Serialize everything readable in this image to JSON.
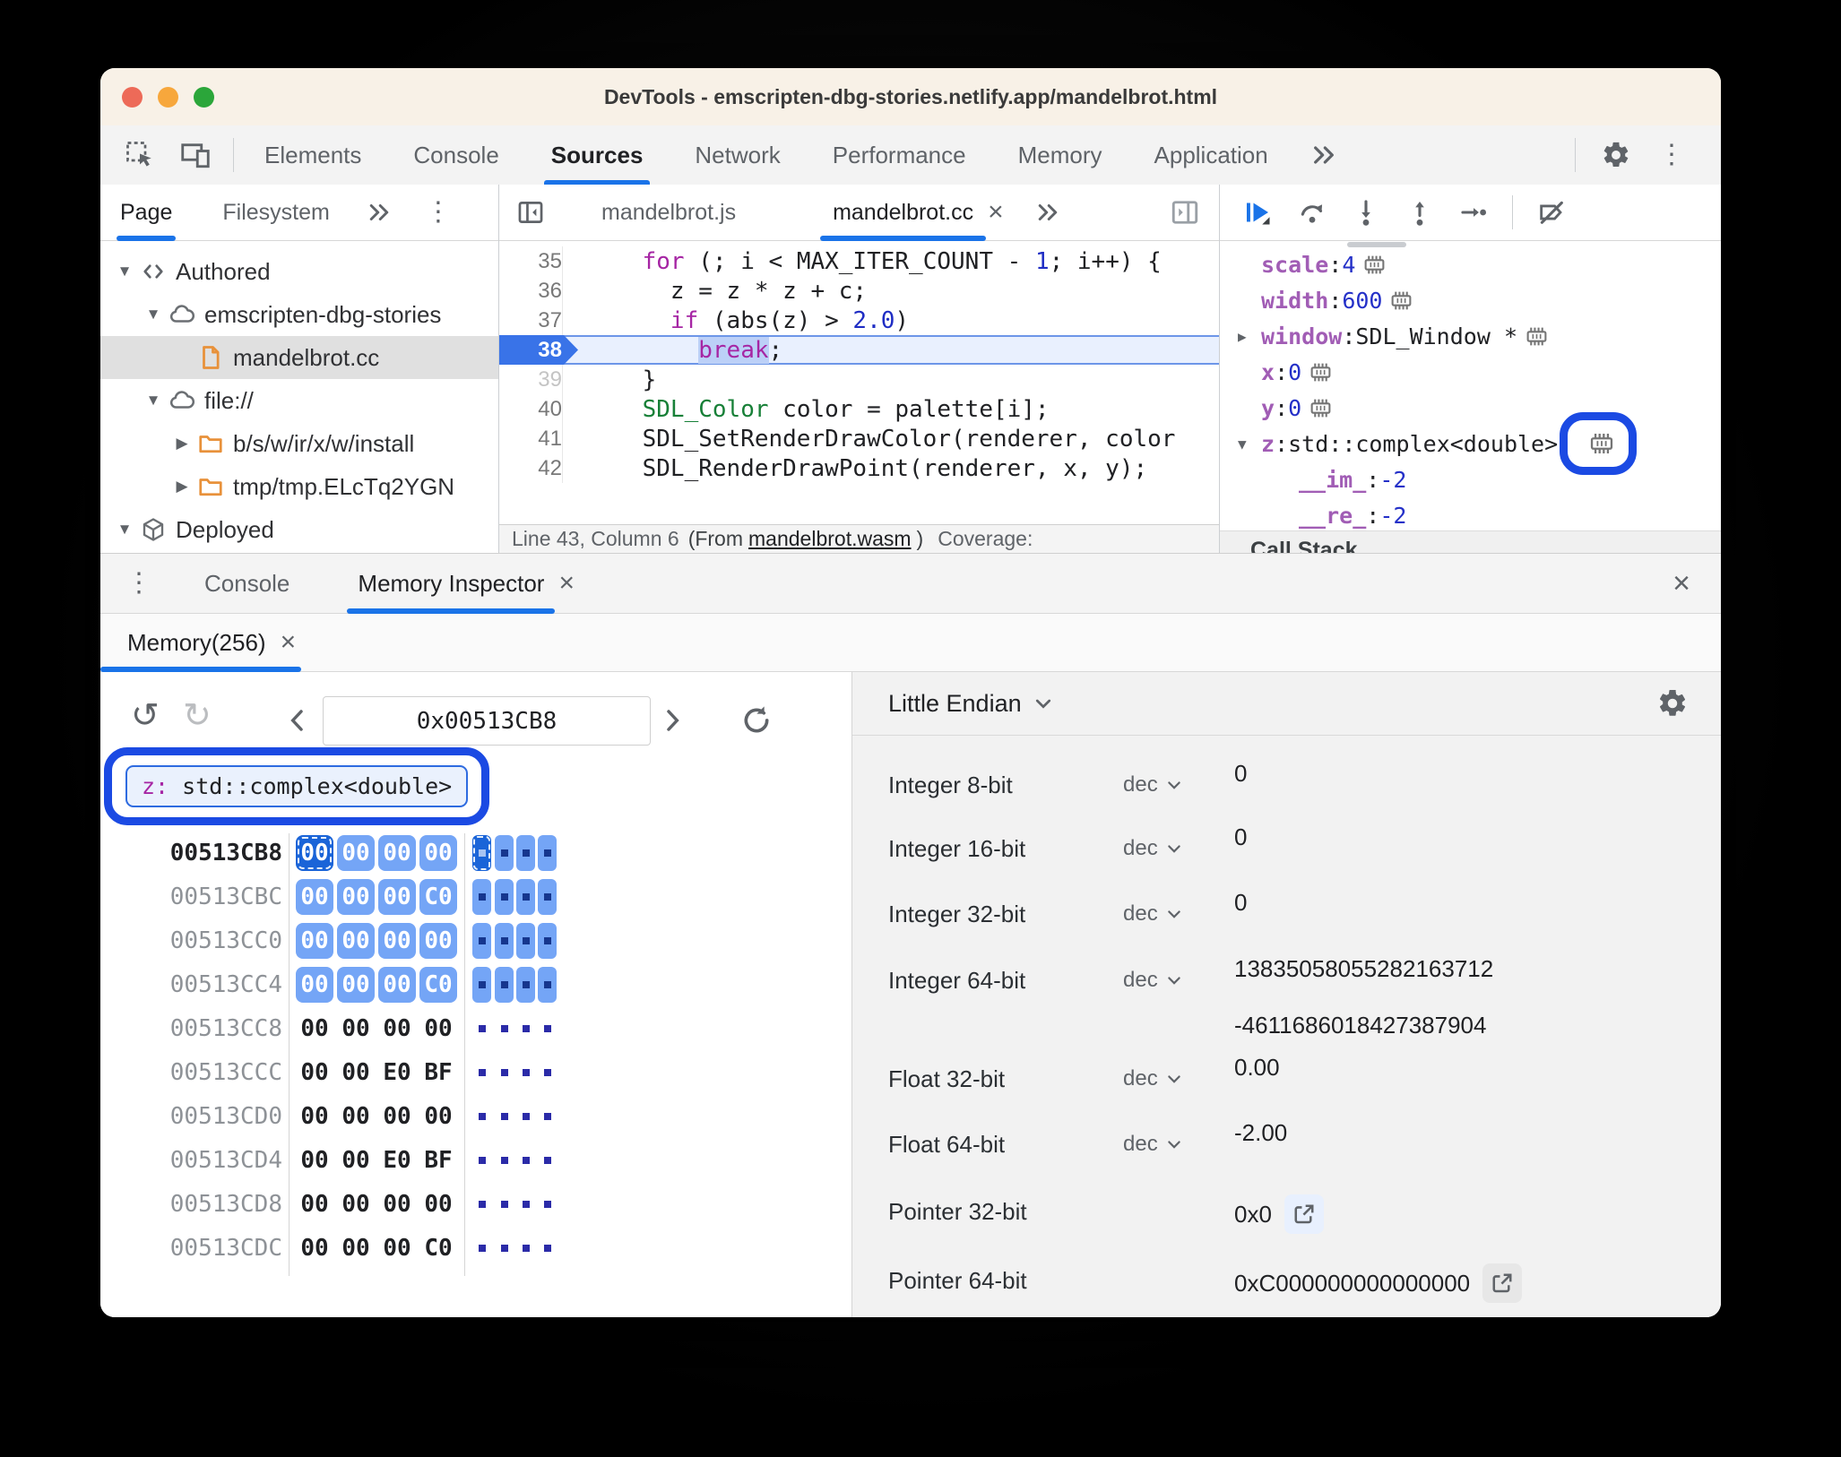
{
  "window": {
    "title": "DevTools - emscripten-dbg-stories.netlify.app/mandelbrot.html"
  },
  "colors": {
    "accent": "#1A73E8",
    "annotation_ring": "#1B4AE3",
    "byte_highlight": "#74A5F6",
    "byte_selected": "#1A64D8",
    "keyword": "#A626A4",
    "number": "#1F2DC4",
    "type_green": "#188038",
    "scope_var": "#A15DB5",
    "traffic_red": "#ED6A58",
    "traffic_orange": "#F7A73C",
    "traffic_green": "#2BA63A"
  },
  "main_tabs": {
    "items": [
      "Elements",
      "Console",
      "Sources",
      "Network",
      "Performance",
      "Memory",
      "Application"
    ],
    "active": "Sources"
  },
  "sidebar": {
    "tabs": [
      "Page",
      "Filesystem"
    ],
    "active": "Page",
    "tree": [
      {
        "expander": "▼",
        "icon": "code",
        "label": "Authored",
        "depth": 0
      },
      {
        "expander": "▼",
        "icon": "cloud",
        "label": "emscripten-dbg-stories",
        "depth": 1
      },
      {
        "expander": "",
        "icon": "file",
        "label": "mandelbrot.cc",
        "depth": 2,
        "selected": true
      },
      {
        "expander": "▼",
        "icon": "cloud",
        "label": "file://",
        "depth": 1
      },
      {
        "expander": "▶",
        "icon": "folder",
        "label": "b/s/w/ir/x/w/install",
        "depth": 2
      },
      {
        "expander": "▶",
        "icon": "folder",
        "label": "tmp/tmp.ELcTq2YGN",
        "depth": 2
      },
      {
        "expander": "▼",
        "icon": "cube",
        "label": "Deployed",
        "depth": 0
      }
    ]
  },
  "editor": {
    "tabs": [
      {
        "label": "mandelbrot.js",
        "active": false
      },
      {
        "label": "mandelbrot.cc",
        "active": true,
        "closable": true
      }
    ],
    "lines": [
      {
        "num": "35",
        "tokens": [
          {
            "t": "p",
            "s": "    "
          },
          {
            "t": "k",
            "s": "for"
          },
          {
            "t": "p",
            "s": " (; i < MAX_ITER_COUNT - "
          },
          {
            "t": "n",
            "s": "1"
          },
          {
            "t": "p",
            "s": "; i++) {"
          }
        ]
      },
      {
        "num": "36",
        "tokens": [
          {
            "t": "p",
            "s": "      z = z * z + c;"
          }
        ]
      },
      {
        "num": "37",
        "tokens": [
          {
            "t": "p",
            "s": "      "
          },
          {
            "t": "k",
            "s": "if"
          },
          {
            "t": "p",
            "s": " (abs(z) > "
          },
          {
            "t": "n",
            "s": "2.0"
          },
          {
            "t": "p",
            "s": ")"
          }
        ]
      },
      {
        "num": "38",
        "current": true,
        "tokens": [
          {
            "t": "p",
            "s": "        "
          },
          {
            "t": "k",
            "s": "break",
            "sel": true
          },
          {
            "t": "p",
            "s": ";"
          }
        ]
      },
      {
        "num": "39",
        "dim": true,
        "tokens": [
          {
            "t": "p",
            "s": "    }"
          }
        ]
      },
      {
        "num": "40",
        "tokens": [
          {
            "t": "p",
            "s": "    "
          },
          {
            "t": "ty",
            "s": "SDL_Color"
          },
          {
            "t": "p",
            "s": " color = palette[i];"
          }
        ]
      },
      {
        "num": "41",
        "tokens": [
          {
            "t": "p",
            "s": "    SDL_SetRenderDrawColor(renderer, color"
          }
        ]
      },
      {
        "num": "42",
        "tokens": [
          {
            "t": "p",
            "s": "    SDL_RenderDrawPoint(renderer, x, y);"
          }
        ]
      }
    ],
    "status": {
      "position": "Line 43, Column 6",
      "from_prefix": "(From",
      "wasm_link": "mandelbrot.wasm",
      "from_suffix": ")",
      "coverage": "Coverage:"
    }
  },
  "debugger": {
    "variables": [
      {
        "expander": "",
        "name": "scale",
        "sep": ": ",
        "value": "4",
        "vkind": "num",
        "chip": true
      },
      {
        "expander": "",
        "name": "width",
        "sep": ": ",
        "value": "600",
        "vkind": "num",
        "chip": true
      },
      {
        "expander": "▶",
        "name": "window",
        "sep": ": ",
        "value": "SDL_Window *",
        "vkind": "type",
        "chip": true
      },
      {
        "expander": "",
        "name": "x",
        "sep": ": ",
        "value": "0",
        "vkind": "num",
        "chip": true
      },
      {
        "expander": "",
        "name": "y",
        "sep": ": ",
        "value": "0",
        "vkind": "num",
        "chip": true
      },
      {
        "expander": "▼",
        "name": "z",
        "sep": ": ",
        "value": "std::complex<double>",
        "vkind": "type",
        "chip": true,
        "annotated": true
      },
      {
        "child": true,
        "name": "__im_",
        "sep": ": ",
        "value": "-2",
        "vkind": "num"
      },
      {
        "child": true,
        "name": "__re_",
        "sep": ": ",
        "value": "-2",
        "vkind": "num"
      }
    ],
    "call_stack_label": "Call Stack"
  },
  "drawer": {
    "tabs": [
      "Console",
      "Memory Inspector"
    ],
    "active": "Memory Inspector"
  },
  "memory_inspector": {
    "tab_label": "Memory(256)",
    "address": "0x00513CB8",
    "tag": {
      "name": "z:",
      "type": " std::complex<double>"
    },
    "hex_rows": [
      {
        "addr": "00513CB8",
        "bytes": [
          "00",
          "00",
          "00",
          "00"
        ],
        "highlight": true,
        "first": true
      },
      {
        "addr": "00513CBC",
        "bytes": [
          "00",
          "00",
          "00",
          "C0"
        ],
        "highlight": true
      },
      {
        "addr": "00513CC0",
        "bytes": [
          "00",
          "00",
          "00",
          "00"
        ],
        "highlight": true
      },
      {
        "addr": "00513CC4",
        "bytes": [
          "00",
          "00",
          "00",
          "C0"
        ],
        "highlight": true
      },
      {
        "addr": "00513CC8",
        "bytes": [
          "00",
          "00",
          "00",
          "00"
        ]
      },
      {
        "addr": "00513CCC",
        "bytes": [
          "00",
          "00",
          "E0",
          "BF"
        ]
      },
      {
        "addr": "00513CD0",
        "bytes": [
          "00",
          "00",
          "00",
          "00"
        ]
      },
      {
        "addr": "00513CD4",
        "bytes": [
          "00",
          "00",
          "E0",
          "BF"
        ]
      },
      {
        "addr": "00513CD8",
        "bytes": [
          "00",
          "00",
          "00",
          "00"
        ]
      },
      {
        "addr": "00513CDC",
        "bytes": [
          "00",
          "00",
          "00",
          "C0"
        ]
      }
    ],
    "endianness": "Little Endian",
    "interpretations": [
      {
        "label": "Integer 8-bit",
        "mode": "dec",
        "value": "0"
      },
      {
        "label": "Integer 16-bit",
        "mode": "dec",
        "value": "0"
      },
      {
        "label": "Integer 32-bit",
        "mode": "dec",
        "value": "0"
      },
      {
        "label": "Integer 64-bit",
        "mode": "dec",
        "value": "13835058055282163712",
        "value2": "-4611686018427387904"
      },
      {
        "label": "Float 32-bit",
        "mode": "dec",
        "value": "0.00"
      },
      {
        "label": "Float 64-bit",
        "mode": "dec",
        "value": "-2.00"
      },
      {
        "label": "Pointer 32-bit",
        "value": "0x0",
        "link": "blue"
      },
      {
        "label": "Pointer 64-bit",
        "value": "0xC000000000000000",
        "link": "gray"
      }
    ]
  },
  "glyphs": {
    "kebab": "⋮",
    "close": "×",
    "undo": "↺",
    "redo": "↻",
    "refresh": "↻"
  }
}
